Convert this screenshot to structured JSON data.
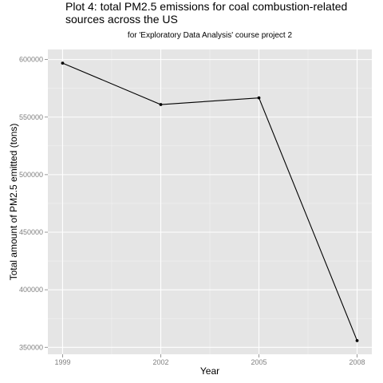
{
  "colors": {
    "panel_background": "#e5e5e5",
    "grid_major": "#ffffff",
    "grid_minor": "#f2f2f2",
    "line": "#000000",
    "point": "#000000",
    "tick_label": "#7f7f7f"
  },
  "chart_data": {
    "type": "line",
    "title_line1": "Plot 4: total PM2.5 emissions for coal combustion-related",
    "title_line2": "sources across the US",
    "subtitle": "for 'Exploratory Data Analysis' course project 2",
    "xlabel": "Year",
    "ylabel": "Total amount of PM2.5 emitted (tons)",
    "x": [
      1999,
      2002,
      2005,
      2008
    ],
    "y": [
      596900,
      560900,
      566700,
      355800
    ],
    "xlim": [
      1998.55,
      2008.45
    ],
    "ylim": [
      343950,
      608750
    ],
    "x_ticks": [
      1999,
      2002,
      2005,
      2008
    ],
    "x_tick_labels": [
      "1999",
      "2002",
      "2005",
      "2008"
    ],
    "y_ticks": [
      350000,
      400000,
      450000,
      500000,
      550000,
      600000
    ],
    "y_tick_labels": [
      "350000",
      "400000",
      "450000",
      "500000",
      "550000",
      "600000"
    ],
    "grid": true,
    "legend": "none"
  }
}
